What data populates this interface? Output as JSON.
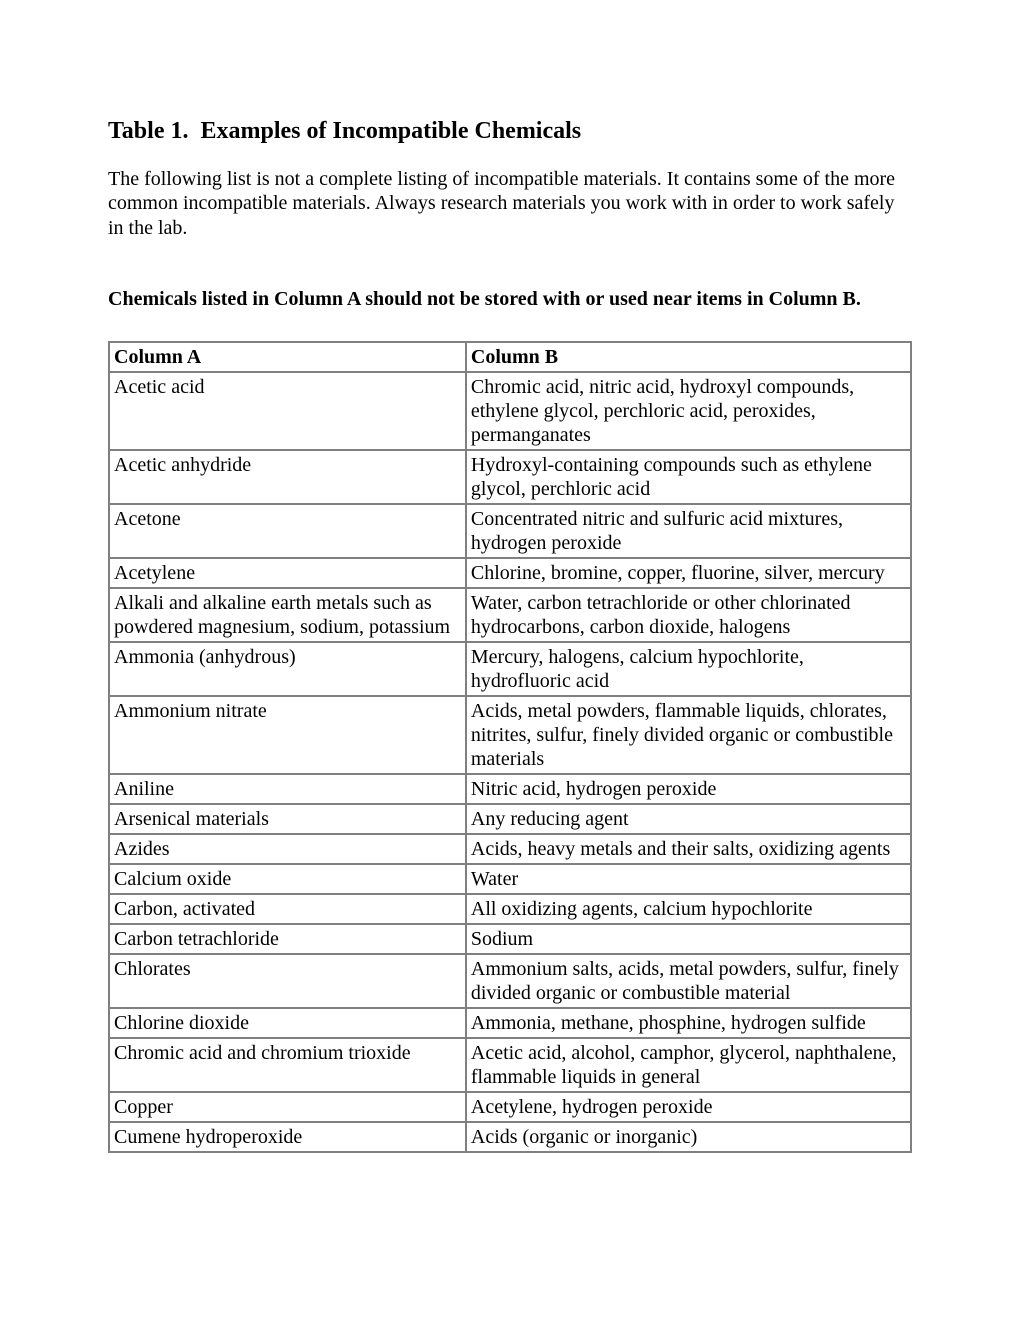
{
  "title": "Table 1.  Examples of Incompatible Chemicals",
  "intro": "The following list is not a complete listing of incompatible materials. It contains some of the more common incompatible materials. Always research materials you work with in order to work safely in the lab.",
  "note": "Chemicals listed in Column A should not be stored with or used near items in Column B.",
  "table": {
    "header_a": "Column A",
    "header_b": "Column B",
    "rows": [
      {
        "a": "Acetic acid",
        "b": "Chromic acid, nitric acid, hydroxyl compounds, ethylene glycol, perchloric acid, peroxides, permanganates"
      },
      {
        "a": "Acetic anhydride",
        "b": "Hydroxyl-containing compounds such as ethylene glycol, perchloric acid"
      },
      {
        "a": "Acetone",
        "b": "Concentrated nitric and sulfuric acid mixtures, hydrogen peroxide"
      },
      {
        "a": "Acetylene",
        "b": "Chlorine, bromine, copper, fluorine, silver, mercury"
      },
      {
        "a": "Alkali and alkaline earth metals such as powdered magnesium, sodium, potassium",
        "b": "Water, carbon tetrachloride or other chlorinated hydrocarbons, carbon dioxide, halogens"
      },
      {
        "a": "Ammonia (anhydrous)",
        "b": "Mercury, halogens, calcium hypochlorite, hydrofluoric acid"
      },
      {
        "a": "Ammonium nitrate",
        "b": "Acids, metal powders, flammable liquids, chlorates, nitrites, sulfur, finely divided organic or combustible materials"
      },
      {
        "a": "Aniline",
        "b": "Nitric acid, hydrogen peroxide"
      },
      {
        "a": "Arsenical materials",
        "b": "Any reducing agent"
      },
      {
        "a": "Azides",
        "b": "Acids, heavy metals and their salts, oxidizing agents"
      },
      {
        "a": "Calcium oxide",
        "b": "Water"
      },
      {
        "a": "Carbon, activated",
        "b": "All oxidizing agents, calcium hypochlorite"
      },
      {
        "a": "Carbon tetrachloride",
        "b": "Sodium"
      },
      {
        "a": "Chlorates",
        "b": "Ammonium salts, acids, metal powders, sulfur, finely divided organic or combustible material"
      },
      {
        "a": "Chlorine dioxide",
        "b": "Ammonia, methane, phosphine, hydrogen sulfide"
      },
      {
        "a": "Chromic acid and chromium trioxide",
        "b": "Acetic acid, alcohol, camphor, glycerol, naphthalene, flammable liquids in general"
      },
      {
        "a": "Copper",
        "b": "Acetylene, hydrogen peroxide"
      },
      {
        "a": "Cumene hydroperoxide",
        "b": "Acids (organic or inorganic)"
      }
    ]
  }
}
